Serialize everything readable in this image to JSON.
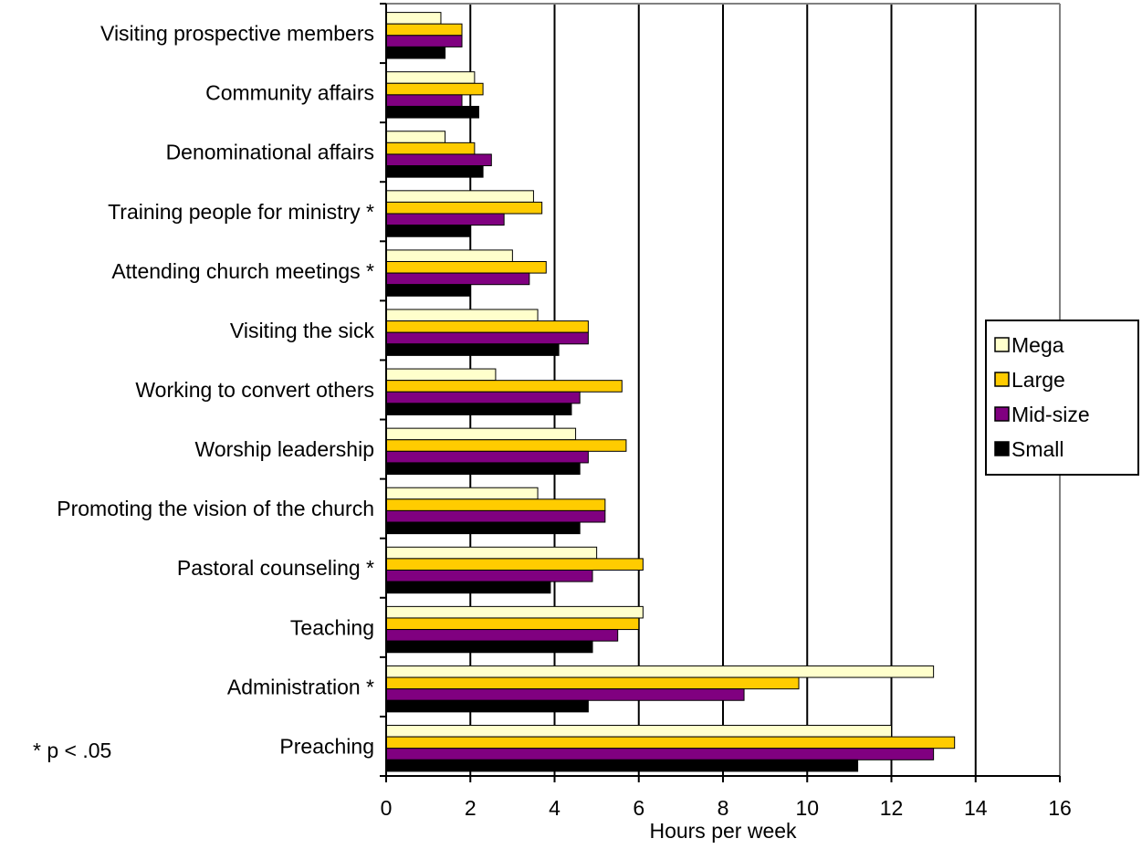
{
  "chart_data": {
    "type": "bar",
    "orientation": "horizontal",
    "xlabel": "Hours per week",
    "xlim": [
      0,
      16
    ],
    "x_ticks": [
      "0",
      "2",
      "4",
      "6",
      "8",
      "10",
      "12",
      "14",
      "16"
    ],
    "grid": "vertical",
    "legend_position": "right",
    "annotation": "* p < .05",
    "categories": [
      "Visiting prospective members",
      "Community affairs",
      "Denominational affairs",
      "Training people for ministry *",
      "Attending church meetings *",
      "Visiting the sick",
      "Working to convert others",
      "Worship leadership",
      "Promoting the vision of the church",
      "Pastoral counseling *",
      "Teaching",
      "Administration *",
      "Preaching"
    ],
    "series": [
      {
        "name": "Mega",
        "color": "#FFFFCC",
        "values": [
          1.3,
          2.1,
          1.4,
          3.5,
          3.0,
          3.6,
          2.6,
          4.5,
          3.6,
          5.0,
          6.1,
          13.0,
          12.0
        ]
      },
      {
        "name": "Large",
        "color": "#FFCC00",
        "values": [
          1.8,
          2.3,
          2.1,
          3.7,
          3.8,
          4.8,
          5.6,
          5.7,
          5.2,
          6.1,
          6.0,
          9.8,
          13.5
        ]
      },
      {
        "name": "Mid-size",
        "color": "#800080",
        "values": [
          1.8,
          1.8,
          2.5,
          2.8,
          3.4,
          4.8,
          4.6,
          4.8,
          5.2,
          4.9,
          5.5,
          8.5,
          13.0
        ]
      },
      {
        "name": "Small",
        "color": "#000000",
        "values": [
          1.4,
          2.2,
          2.3,
          2.0,
          2.0,
          4.1,
          4.4,
          4.6,
          4.6,
          3.9,
          4.9,
          4.8,
          11.2
        ]
      }
    ]
  }
}
